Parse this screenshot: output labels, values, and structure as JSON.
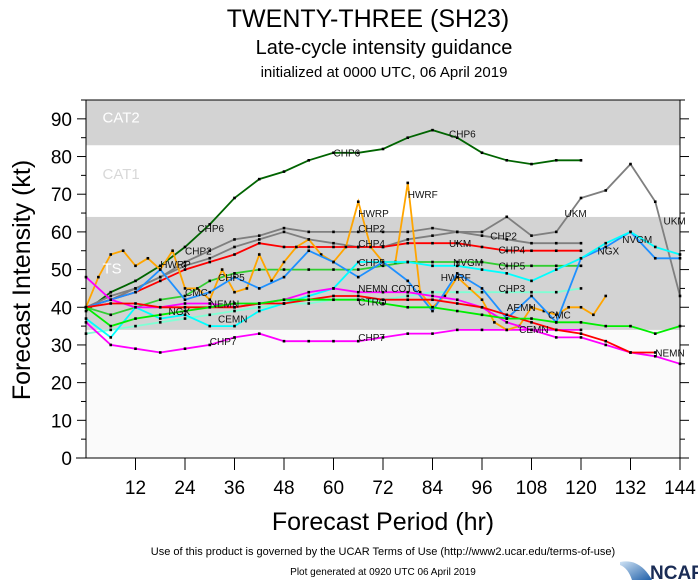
{
  "header": {
    "title": "TWENTY-THREE (SH23)",
    "subtitle": "Late-cycle intensity guidance",
    "initialized": "initialized at 0000 UTC, 06 April 2019"
  },
  "footer": {
    "terms": "Use of this product is governed by the UCAR Terms of Use (http://www2.ucar.edu/terms-of-use)",
    "generated": "Plot generated at 0920 UTC   06 April 2019",
    "logo": "NCAR"
  },
  "chart_data": {
    "type": "line",
    "title": "TWENTY-THREE (SH23)",
    "xlabel": "Forecast Period (hr)",
    "ylabel": "Forecast Intensity (kt)",
    "xlim": [
      0,
      144
    ],
    "ylim": [
      0,
      95
    ],
    "xticks": [
      "12",
      "24",
      "36",
      "48",
      "60",
      "72",
      "84",
      "96",
      "108",
      "120",
      "132",
      "144"
    ],
    "yticks": [
      "0",
      "10",
      "20",
      "30",
      "40",
      "50",
      "60",
      "70",
      "80",
      "90"
    ],
    "bands": [
      {
        "name": "TS",
        "from": 34,
        "to": 64,
        "color": "#d3d3d3"
      },
      {
        "name": "CAT1",
        "from": 64,
        "to": 83,
        "color": "#ffffff"
      },
      {
        "name": "CAT2",
        "from": 83,
        "to": 96,
        "color": "#d3d3d3"
      }
    ],
    "grid": false,
    "series": [
      {
        "name": "CHP6",
        "color": "#006400",
        "x": [
          0,
          6,
          12,
          18,
          24,
          30,
          36,
          42,
          48,
          54,
          60,
          66,
          72,
          78,
          84,
          90,
          96,
          102,
          108,
          114,
          120
        ],
        "y": [
          39,
          44,
          47,
          51,
          56,
          62,
          69,
          74,
          76,
          79,
          81,
          81,
          82,
          85,
          87,
          85,
          81,
          79,
          78,
          79,
          79
        ]
      },
      {
        "name": "CHP2",
        "color": "#7f7f7f",
        "x": [
          0,
          6,
          12,
          18,
          24,
          30,
          36,
          42,
          48,
          54,
          60,
          66,
          72,
          78,
          84,
          90,
          96,
          102,
          108,
          114,
          120
        ],
        "y": [
          40,
          43,
          45,
          48,
          52,
          55,
          58,
          59,
          61,
          60,
          60,
          60,
          60,
          60,
          61,
          60,
          59,
          58,
          57,
          57,
          57
        ]
      },
      {
        "name": "UKM",
        "color": "#7f7f7f",
        "x": [
          0,
          6,
          12,
          18,
          24,
          30,
          36,
          42,
          48,
          54,
          60,
          66,
          72,
          78,
          84,
          90,
          96,
          102,
          108,
          114,
          120,
          126,
          132,
          138,
          144
        ],
        "y": [
          40,
          42,
          45,
          48,
          51,
          53,
          56,
          58,
          60,
          58,
          57,
          56,
          56,
          58,
          59,
          60,
          60,
          64,
          59,
          60,
          69,
          71,
          78,
          68,
          43
        ]
      },
      {
        "name": "CHP4",
        "color": "#ff0000",
        "x": [
          0,
          6,
          12,
          18,
          24,
          30,
          36,
          42,
          48,
          54,
          60,
          66,
          72,
          78,
          84,
          90,
          96,
          102,
          108,
          114,
          120
        ],
        "y": [
          40,
          42,
          44,
          47,
          50,
          52,
          54,
          57,
          56,
          56,
          56,
          56,
          56,
          57,
          57,
          57,
          56,
          55,
          55,
          55,
          55
        ]
      },
      {
        "name": "CHP5",
        "color": "#32cd32",
        "x": [
          0,
          6,
          12,
          18,
          24,
          30,
          36,
          42,
          48,
          54,
          60,
          66,
          72,
          78,
          84,
          90,
          96,
          102,
          108,
          114,
          120
        ],
        "y": [
          40,
          38,
          40,
          42,
          43,
          47,
          49,
          50,
          50,
          50,
          50,
          50,
          51,
          52,
          52,
          52,
          52,
          51,
          51,
          51,
          51
        ]
      },
      {
        "name": "CHP3",
        "color": "#7fffd4",
        "x": [
          0,
          6,
          12,
          18,
          24,
          30,
          36,
          42,
          48,
          54,
          60,
          66,
          72,
          78,
          84,
          90,
          96,
          102,
          108,
          114,
          120
        ],
        "y": [
          33,
          34,
          35,
          36,
          37,
          38,
          39,
          40,
          41,
          41,
          42,
          42,
          42,
          43,
          44,
          44,
          44,
          44,
          44,
          44,
          45
        ]
      },
      {
        "name": "CHP7",
        "color": "#ff00ff",
        "x": [
          0,
          6,
          12,
          18,
          24,
          30,
          36,
          42,
          48,
          54,
          60,
          66,
          72,
          78,
          84,
          90,
          96,
          102,
          108,
          114,
          120
        ],
        "y": [
          36,
          30,
          29,
          28,
          29,
          30,
          32,
          33,
          31,
          31,
          31,
          31,
          32,
          33,
          33,
          34,
          34,
          34,
          34,
          34,
          34
        ]
      },
      {
        "name": "HWRF",
        "color": "#ffa500",
        "x": [
          0,
          3,
          6,
          9,
          12,
          15,
          18,
          21,
          24,
          27,
          30,
          33,
          36,
          39,
          42,
          45,
          48,
          51,
          54,
          57,
          60,
          63,
          66,
          69,
          72,
          75,
          78,
          81,
          84,
          87,
          90,
          93,
          96,
          99,
          102,
          105,
          108,
          111,
          114,
          117,
          120,
          123,
          126
        ],
        "y": [
          40,
          48,
          54,
          55,
          51,
          53,
          50,
          55,
          45,
          45,
          42,
          50,
          44,
          45,
          54,
          47,
          52,
          56,
          58,
          54,
          52,
          56,
          68,
          56,
          52,
          52,
          73,
          44,
          40,
          43,
          48,
          45,
          42,
          36,
          34,
          35,
          40,
          39,
          38,
          40,
          40,
          38,
          43
        ]
      },
      {
        "name": "COTC",
        "color": "#1e90ff",
        "x": [
          0,
          6,
          12,
          18,
          24,
          30,
          36,
          42,
          48,
          54,
          60,
          66,
          72,
          78,
          84,
          90,
          96,
          102,
          108,
          114,
          120,
          126,
          132,
          138,
          144
        ],
        "y": [
          40,
          42,
          44,
          50,
          42,
          44,
          48,
          45,
          48,
          55,
          52,
          48,
          52,
          47,
          39,
          49,
          45,
          37,
          43,
          36,
          53,
          56,
          60,
          53,
          53
        ]
      },
      {
        "name": "NVGM",
        "color": "#00ffff",
        "x": [
          0,
          6,
          12,
          18,
          24,
          30,
          36,
          42,
          48,
          54,
          60,
          66,
          72,
          78,
          84,
          90,
          96,
          102,
          108,
          114,
          120,
          126,
          132,
          138,
          144
        ],
        "y": [
          37,
          32,
          40,
          37,
          38,
          35,
          35,
          39,
          41,
          43,
          45,
          52,
          52,
          52,
          51,
          51,
          50,
          49,
          47,
          50,
          53,
          57,
          60,
          56,
          54
        ]
      },
      {
        "name": "NEMN",
        "color": "#ff00ff",
        "x": [
          0,
          6,
          12,
          18,
          24,
          30,
          36,
          42,
          48,
          54,
          60,
          66,
          72,
          78,
          84,
          90,
          96,
          102,
          108,
          114,
          120,
          126,
          132,
          138,
          144
        ],
        "y": [
          48,
          42,
          40,
          40,
          41,
          41,
          40,
          41,
          42,
          44,
          45,
          44,
          44,
          44,
          43,
          42,
          40,
          36,
          34,
          32,
          32,
          30,
          28,
          27,
          25
        ]
      },
      {
        "name": "AEMN",
        "color": "#ff0000",
        "x": [
          0,
          6,
          12,
          18,
          24,
          30,
          36,
          42,
          48,
          54,
          60,
          66,
          72,
          78,
          84,
          90,
          96,
          102,
          108,
          114,
          120,
          126,
          132,
          138
        ],
        "y": [
          40,
          41,
          41,
          40,
          40,
          40,
          40,
          41,
          41,
          42,
          43,
          43,
          42,
          42,
          42,
          41,
          40,
          38,
          36,
          34,
          33,
          31,
          28,
          28
        ]
      },
      {
        "name": "CEMN",
        "color": "#00ee00",
        "x": [
          0,
          6,
          12,
          18,
          24,
          30,
          36,
          42,
          48,
          54,
          60,
          66,
          72,
          78,
          84,
          90,
          96,
          102,
          108,
          114,
          120,
          126,
          132,
          138,
          144
        ],
        "y": [
          40,
          35,
          37,
          38,
          39,
          40,
          41,
          41,
          42,
          42,
          42,
          42,
          41,
          40,
          40,
          39,
          38,
          37,
          37,
          36,
          36,
          35,
          35,
          33,
          35
        ]
      }
    ],
    "annotations": [
      {
        "text": "CAT2",
        "x": 4,
        "y": 89
      },
      {
        "text": "CAT1",
        "x": 4,
        "y": 74
      },
      {
        "text": "TS",
        "x": 4,
        "y": 49
      },
      {
        "text": "CHP6",
        "x": 27,
        "y": 60
      },
      {
        "text": "CHP6",
        "x": 60,
        "y": 80
      },
      {
        "text": "CHP6",
        "x": 88,
        "y": 85
      },
      {
        "text": "CHP2",
        "x": 24,
        "y": 54
      },
      {
        "text": "CHP2",
        "x": 66,
        "y": 60
      },
      {
        "text": "CHP2",
        "x": 98,
        "y": 58
      },
      {
        "text": "CHP4",
        "x": 66,
        "y": 56
      },
      {
        "text": "CHP4",
        "x": 100,
        "y": 55
      },
      {
        "text": "CHP5",
        "x": 32,
        "y": 47
      },
      {
        "text": "CHP5",
        "x": 66,
        "y": 51
      },
      {
        "text": "CHP5",
        "x": 100,
        "y": 50
      },
      {
        "text": "CHP3",
        "x": 100,
        "y": 44
      },
      {
        "text": "CHP7",
        "x": 30,
        "y": 30
      },
      {
        "text": "CHP7",
        "x": 66,
        "y": 31
      },
      {
        "text": "HWRP",
        "x": 18,
        "y": 52
      },
      {
        "text": "HWRP",
        "x": 66,
        "y": 64
      },
      {
        "text": "HWRF",
        "x": 78,
        "y": 69
      },
      {
        "text": "HWRF",
        "x": 86,
        "y": 47
      },
      {
        "text": "UKM",
        "x": 88,
        "y": 56
      },
      {
        "text": "UKM",
        "x": 116,
        "y": 64
      },
      {
        "text": "UKM",
        "x": 140,
        "y": 62
      },
      {
        "text": "NGX",
        "x": 124,
        "y": 54
      },
      {
        "text": "NVGM",
        "x": 130,
        "y": 57
      },
      {
        "text": "NVGM",
        "x": 89,
        "y": 51
      },
      {
        "text": "CMC",
        "x": 24,
        "y": 43
      },
      {
        "text": "CMC",
        "x": 112,
        "y": 37
      },
      {
        "text": "COTC",
        "x": 74,
        "y": 44
      },
      {
        "text": "NEMN",
        "x": 66,
        "y": 44
      },
      {
        "text": "NEMN",
        "x": 30,
        "y": 40
      },
      {
        "text": "NEMN",
        "x": 138,
        "y": 27
      },
      {
        "text": "AEMN",
        "x": 102,
        "y": 39
      },
      {
        "text": "CEMN",
        "x": 32,
        "y": 36
      },
      {
        "text": "CEMN",
        "x": 105,
        "y": 38
      },
      {
        "text": "CTRO",
        "x": 66,
        "y": 42
      },
      {
        "text": "NGX",
        "x": 20,
        "y": 38
      }
    ]
  }
}
